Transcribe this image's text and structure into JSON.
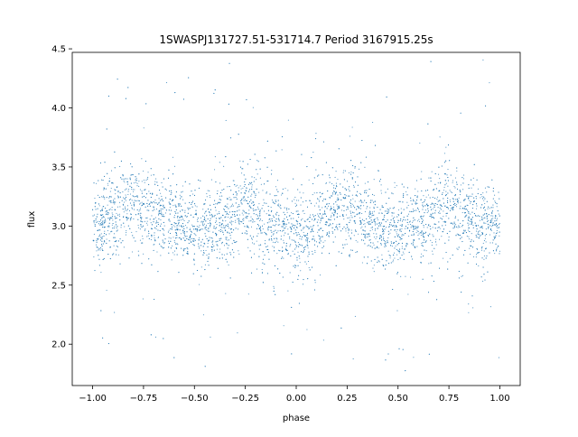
{
  "chart_data": {
    "type": "scatter",
    "title": "1SWASPJ131727.51-531714.7 Period 3167915.25s",
    "xlabel": "phase",
    "ylabel": "flux",
    "xlim": [
      -1.1,
      1.1
    ],
    "ylim": [
      1.65,
      4.47
    ],
    "xticks": [
      -1.0,
      -0.75,
      -0.5,
      -0.25,
      0.0,
      0.25,
      0.5,
      0.75,
      1.0
    ],
    "xtick_labels": [
      "−1.00",
      "−0.75",
      "−0.50",
      "−0.25",
      "0.00",
      "0.25",
      "0.50",
      "0.75",
      "1.00"
    ],
    "yticks": [
      2.0,
      2.5,
      3.0,
      3.5,
      4.0,
      4.5
    ],
    "ytick_labels": [
      "2.0",
      "2.5",
      "3.0",
      "3.5",
      "4.0",
      "4.5"
    ],
    "grid": false,
    "legend": "none",
    "marker_color": "#1f77b4",
    "marker": "small dots",
    "x_range": [
      -1.0,
      1.0
    ],
    "baseline_flux": 3.05,
    "typical_scatter": [
      2.7,
      3.4
    ],
    "min_flux": 1.75,
    "max_flux": 4.42,
    "profile": [
      {
        "x": -1.0,
        "center": 3.0
      },
      {
        "x": -0.85,
        "center": 3.15
      },
      {
        "x": -0.75,
        "center": 3.2
      },
      {
        "x": -0.6,
        "center": 3.05
      },
      {
        "x": -0.5,
        "center": 2.95
      },
      {
        "x": -0.35,
        "center": 3.05
      },
      {
        "x": -0.25,
        "center": 3.15
      },
      {
        "x": -0.15,
        "center": 3.05
      },
      {
        "x": 0.0,
        "center": 2.9
      },
      {
        "x": 0.1,
        "center": 3.0
      },
      {
        "x": 0.2,
        "center": 3.15
      },
      {
        "x": 0.3,
        "center": 3.15
      },
      {
        "x": 0.4,
        "center": 3.0
      },
      {
        "x": 0.5,
        "center": 2.95
      },
      {
        "x": 0.6,
        "center": 3.0
      },
      {
        "x": 0.75,
        "center": 3.2
      },
      {
        "x": 0.85,
        "center": 3.05
      },
      {
        "x": 1.0,
        "center": 3.0
      }
    ]
  }
}
